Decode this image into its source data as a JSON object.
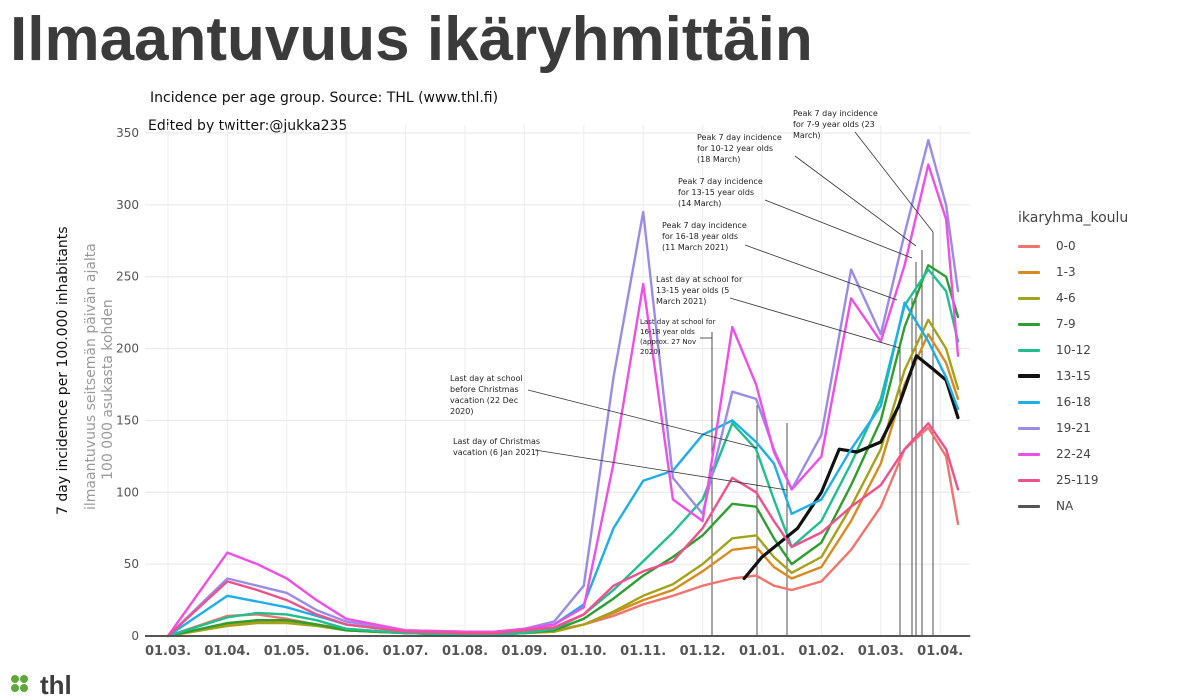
{
  "slide_title": "Ilmaantuvuus ikäryhmittäin",
  "logo_text": "thl",
  "chart_data": {
    "type": "line",
    "caption_source": "Incidence per age group. Source: THL (www.thl.fi)",
    "caption_edited": "Edited by twitter:@jukka235",
    "ylabel_en": "7 day incidemce per 100.000 inhabitants",
    "ylabel_fi_1": "ilmaantuvuus seitsemän päivän ajalta",
    "ylabel_fi_2": "100 000 asukasta kohden",
    "ylim": [
      0,
      350
    ],
    "yticks": [
      "0",
      "50",
      "100",
      "150",
      "200",
      "250",
      "300",
      "350"
    ],
    "xticks": [
      "01.03.",
      "01.04.",
      "01.05.",
      "01.06.",
      "01.07.",
      "01.08.",
      "01.09.",
      "01.10.",
      "01.11.",
      "01.12.",
      "01.01.",
      "01.02.",
      "01.03.",
      "01.04."
    ],
    "grid": true,
    "legend_title": "ikaryhma_koulu",
    "legend_position": "right",
    "series": [
      {
        "name": "0-0",
        "color": "#f2736b",
        "x": [
          0,
          1,
          1.5,
          2,
          2.5,
          3,
          4,
          5,
          5.5,
          6,
          6.5,
          7,
          7.5,
          8,
          8.5,
          9,
          9.5,
          9.9,
          10.2,
          10.5,
          11,
          11.5,
          12,
          12.4,
          12.8,
          13.1,
          13.3
        ],
        "values": [
          0,
          14,
          15,
          12,
          8,
          5,
          2,
          1,
          1,
          3,
          4,
          8,
          14,
          22,
          28,
          35,
          40,
          42,
          35,
          32,
          38,
          60,
          90,
          130,
          145,
          125,
          78
        ]
      },
      {
        "name": "1-3",
        "color": "#d98a1f",
        "x": [
          0,
          1,
          1.5,
          2,
          2.5,
          3,
          4,
          5,
          5.5,
          6,
          6.5,
          7,
          7.5,
          8,
          8.5,
          9,
          9.5,
          9.9,
          10.2,
          10.5,
          11,
          11.5,
          12,
          12.4,
          12.8,
          13.1,
          13.3
        ],
        "values": [
          0,
          8,
          10,
          10,
          8,
          4,
          2,
          1,
          1,
          2,
          3,
          8,
          16,
          25,
          32,
          45,
          60,
          62,
          48,
          40,
          48,
          80,
          120,
          175,
          210,
          190,
          165
        ]
      },
      {
        "name": "4-6",
        "color": "#a4a21a",
        "x": [
          0,
          1,
          1.5,
          2,
          2.5,
          3,
          4,
          5,
          5.5,
          6,
          6.5,
          7,
          7.5,
          8,
          8.5,
          9,
          9.5,
          9.9,
          10.2,
          10.5,
          11,
          11.5,
          12,
          12.4,
          12.8,
          13.1,
          13.3
        ],
        "values": [
          0,
          7,
          9,
          9,
          7,
          4,
          2,
          1,
          1,
          2,
          3,
          8,
          17,
          28,
          36,
          50,
          68,
          70,
          55,
          44,
          55,
          90,
          130,
          185,
          220,
          200,
          172
        ]
      },
      {
        "name": "7-9",
        "color": "#2e9e2e",
        "x": [
          0,
          1,
          1.5,
          2,
          2.5,
          3,
          4,
          5,
          5.5,
          6,
          6.5,
          7,
          7.5,
          8,
          8.5,
          9,
          9.5,
          9.9,
          10.2,
          10.5,
          11,
          11.5,
          12,
          12.4,
          12.8,
          13.1,
          13.3
        ],
        "values": [
          0,
          9,
          11,
          11,
          8,
          4,
          2,
          1,
          1,
          2,
          4,
          12,
          26,
          42,
          55,
          70,
          92,
          90,
          68,
          50,
          65,
          105,
          150,
          215,
          258,
          250,
          222
        ]
      },
      {
        "name": "10-12",
        "color": "#1fbf8f",
        "x": [
          0,
          1,
          1.5,
          2,
          2.5,
          3,
          4,
          5,
          5.5,
          6,
          6.5,
          7,
          7.5,
          8,
          8.5,
          9,
          9.5,
          9.9,
          10.2,
          10.5,
          11,
          11.5,
          12,
          12.4,
          12.8,
          13.1,
          13.3
        ],
        "values": [
          0,
          13,
          16,
          15,
          11,
          5,
          2,
          1,
          1,
          2,
          5,
          15,
          32,
          52,
          72,
          95,
          148,
          130,
          95,
          62,
          80,
          120,
          165,
          230,
          255,
          240,
          205
        ]
      },
      {
        "name": "13-15",
        "color": "#111111",
        "x": [
          9.7,
          10,
          10.3,
          10.6,
          11,
          11.3,
          11.6,
          12,
          12.3,
          12.6,
          12.9,
          13.1,
          13.3
        ],
        "values": [
          40,
          55,
          65,
          75,
          100,
          130,
          128,
          135,
          160,
          195,
          185,
          178,
          152
        ]
      },
      {
        "name": "16-18",
        "color": "#1eaee8",
        "x": [
          0,
          1,
          1.5,
          2,
          2.5,
          3,
          4,
          5,
          5.5,
          6,
          6.5,
          7,
          7.5,
          8,
          8.5,
          9,
          9.5,
          9.9,
          10.2,
          10.5,
          11,
          11.5,
          12,
          12.4,
          12.8,
          13.1,
          13.3
        ],
        "values": [
          0,
          28,
          24,
          20,
          14,
          8,
          3,
          2,
          2,
          4,
          8,
          22,
          75,
          108,
          115,
          140,
          150,
          135,
          120,
          85,
          95,
          130,
          160,
          232,
          205,
          180,
          158
        ]
      },
      {
        "name": "19-21",
        "color": "#9b8be8",
        "x": [
          0,
          1,
          1.5,
          2,
          2.5,
          3,
          4,
          5,
          5.5,
          6,
          6.5,
          7,
          7.5,
          8,
          8.5,
          9,
          9.5,
          9.9,
          10.2,
          10.5,
          11,
          11.5,
          12,
          12.4,
          12.8,
          13.1,
          13.3
        ],
        "values": [
          0,
          40,
          35,
          30,
          18,
          10,
          4,
          3,
          3,
          5,
          10,
          35,
          180,
          295,
          110,
          85,
          170,
          165,
          130,
          102,
          140,
          255,
          210,
          280,
          345,
          300,
          240
        ]
      },
      {
        "name": "22-24",
        "color": "#ef4fe8",
        "x": [
          0,
          1,
          1.5,
          2,
          2.5,
          3,
          4,
          5,
          5.5,
          6,
          6.5,
          7,
          7.5,
          8,
          8.5,
          9,
          9.5,
          9.9,
          10.2,
          10.5,
          11,
          11.5,
          12,
          12.4,
          12.8,
          13.1,
          13.3
        ],
        "values": [
          0,
          58,
          50,
          40,
          25,
          12,
          4,
          3,
          3,
          5,
          8,
          20,
          120,
          245,
          95,
          80,
          215,
          175,
          128,
          102,
          125,
          235,
          205,
          258,
          328,
          290,
          195
        ]
      },
      {
        "name": "25-119",
        "color": "#f0508c",
        "x": [
          0,
          1,
          1.5,
          2,
          2.5,
          3,
          4,
          5,
          5.5,
          6,
          6.5,
          7,
          7.5,
          8,
          8.5,
          9,
          9.5,
          9.9,
          10.2,
          10.5,
          11,
          11.5,
          12,
          12.4,
          12.8,
          13.1,
          13.3
        ],
        "values": [
          0,
          38,
          32,
          25,
          15,
          8,
          3,
          2,
          2,
          4,
          6,
          15,
          35,
          45,
          52,
          75,
          110,
          100,
          80,
          62,
          72,
          90,
          105,
          130,
          148,
          130,
          102
        ]
      },
      {
        "name": "NA",
        "color": "#555555",
        "x": [],
        "values": []
      }
    ],
    "annotations": [
      {
        "lines": [
          "Peak 7 day incidence",
          "for 7-9 year olds (23",
          "March)"
        ]
      },
      {
        "lines": [
          "Peak 7 day incidence",
          "for 10-12 year olds",
          "(18 March)"
        ]
      },
      {
        "lines": [
          "Peak 7 day incidence",
          "for 13-15 year olds",
          "(14 March)"
        ]
      },
      {
        "lines": [
          "Peak 7 day incidence",
          "for 16-18 year olds",
          "(11 March 2021)"
        ]
      },
      {
        "lines": [
          "Last day at school for",
          "13-15 year olds (5",
          "March 2021)"
        ]
      },
      {
        "lines": [
          "Last day at school for",
          "16-18 year olds",
          "(approx. 27 Nov",
          "2020)"
        ]
      },
      {
        "lines": [
          "Last day at school",
          "before Christmas",
          "vacation (22 Dec",
          "2020)"
        ]
      },
      {
        "lines": [
          "Last day of Christmas",
          "vacation (6 Jan 2021)"
        ]
      }
    ]
  }
}
